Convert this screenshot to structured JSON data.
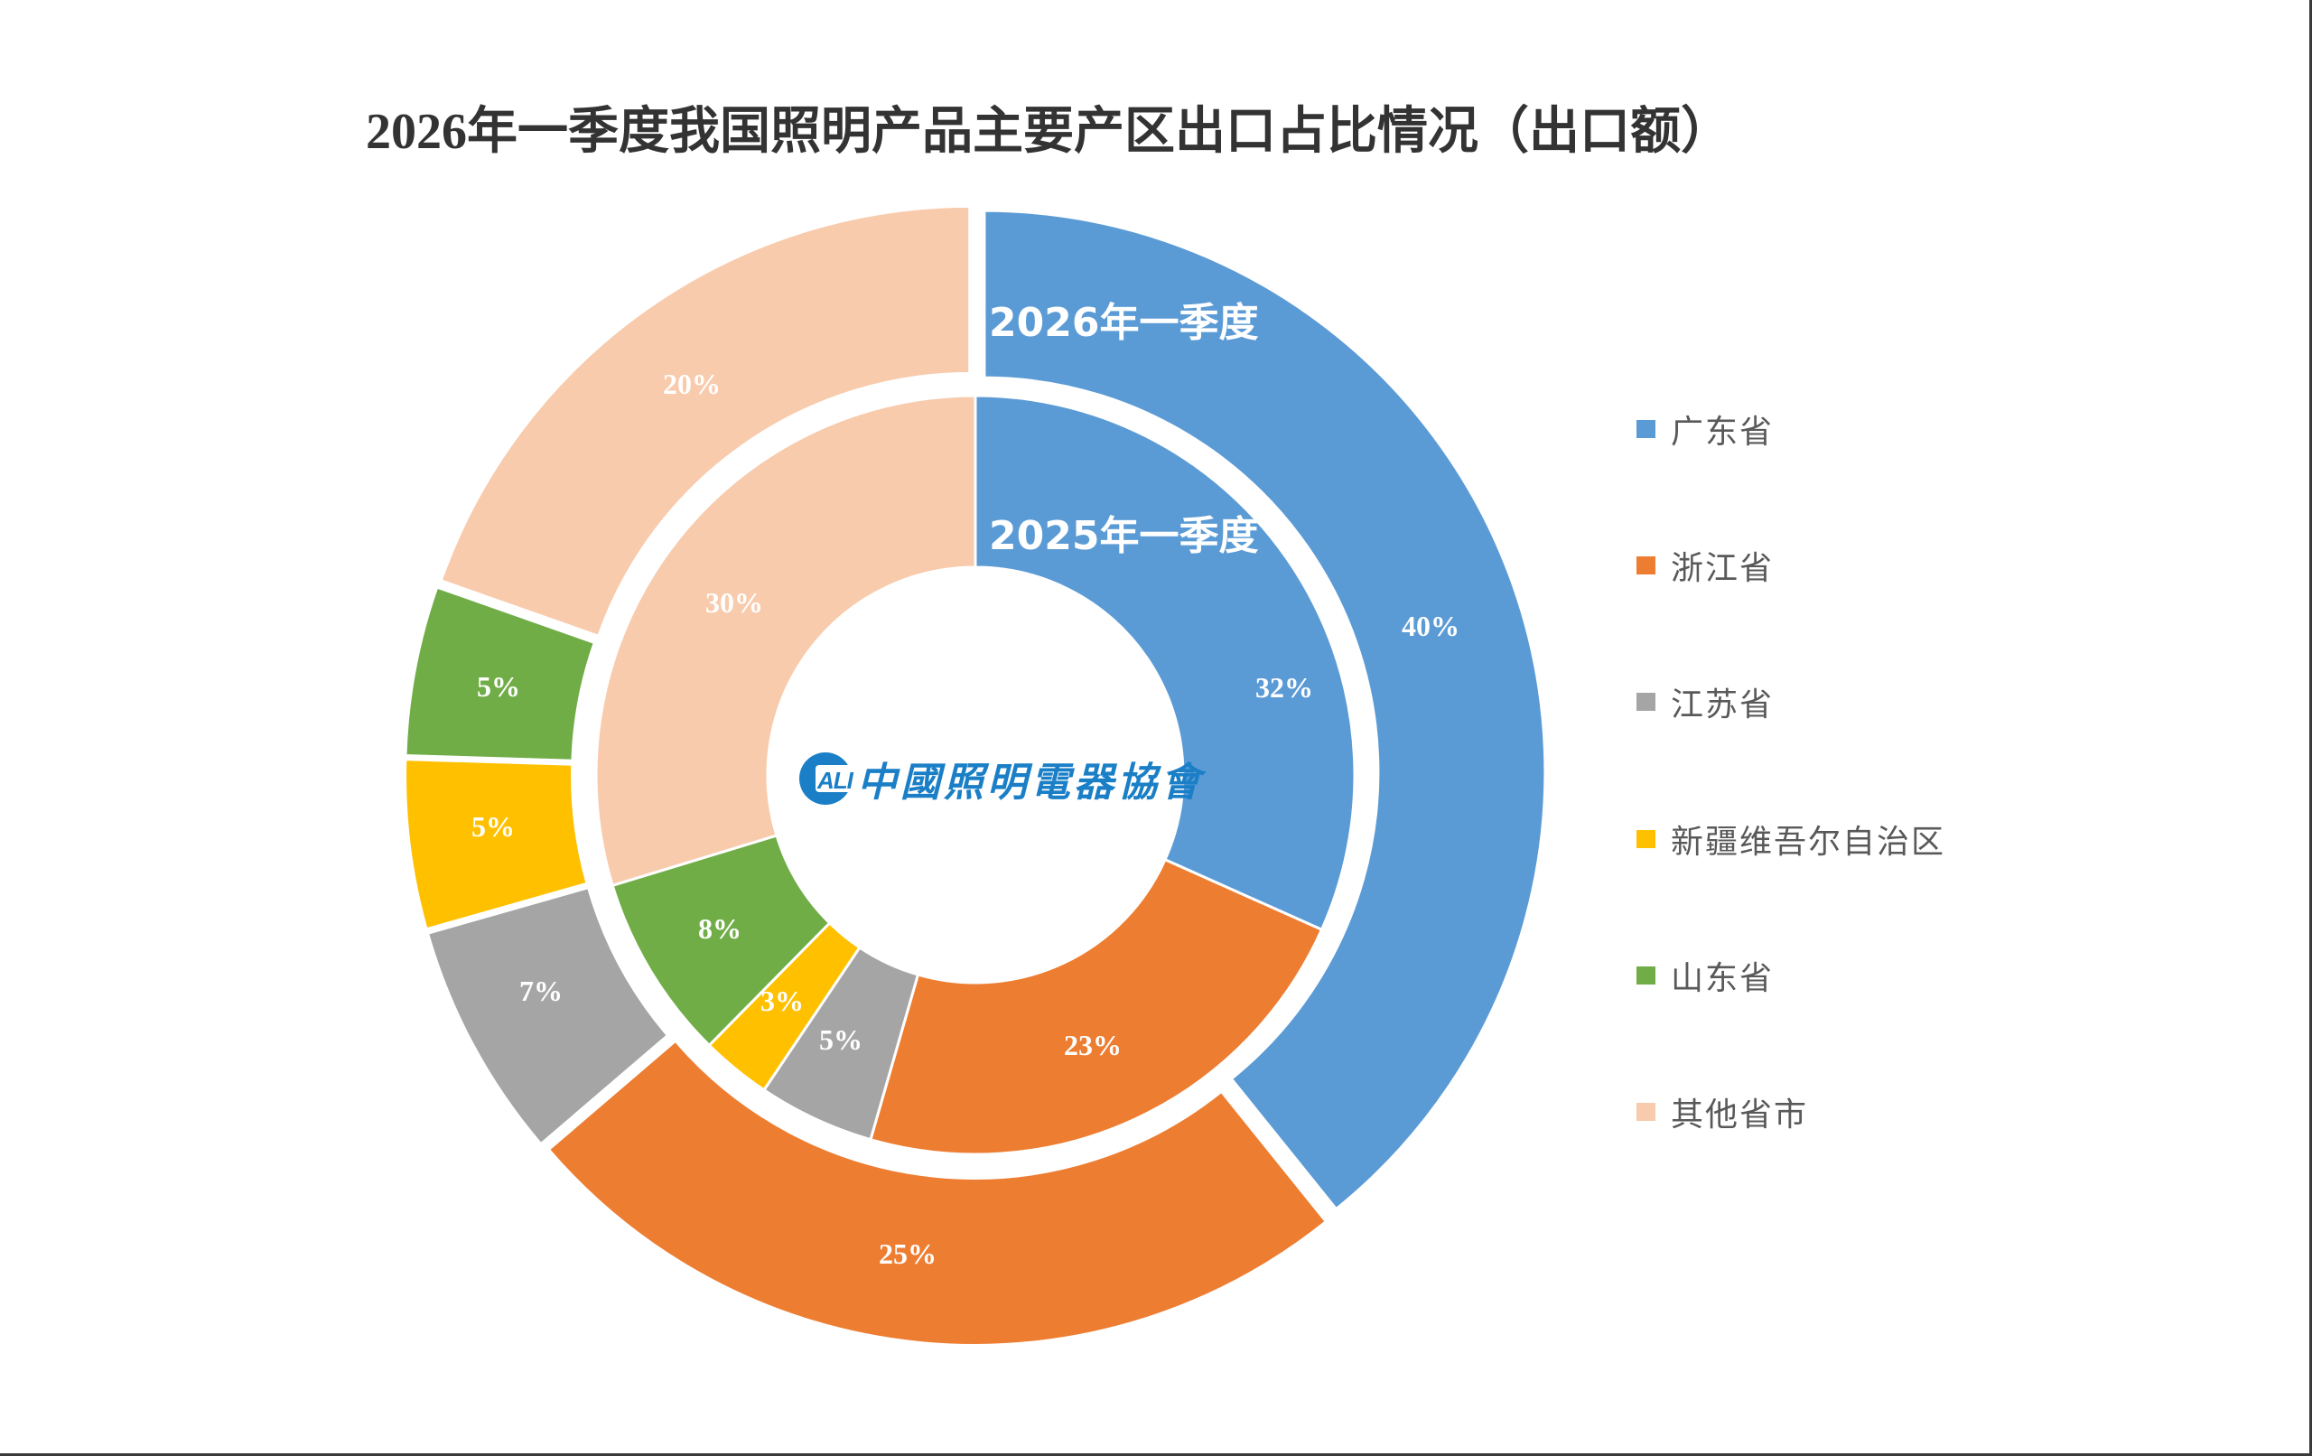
{
  "title": "2026年一季度我国照明产品主要产区出口占比情况（出口额）",
  "colors": {
    "guangdong": "#5B9BD5",
    "zhejiang": "#ED7D31",
    "jiangsu": "#A5A5A5",
    "xinjiang": "#FFC000",
    "shandong": "#70AD47",
    "others": "#F8CBAD",
    "title_text": "#333333",
    "legend_text": "#595959",
    "logo": "#1a7fc6"
  },
  "ring_titles": {
    "outer": "2026年一季度",
    "inner": "2025年一季度"
  },
  "legend": [
    {
      "label": "广东省",
      "color": "#5B9BD5"
    },
    {
      "label": "浙江省",
      "color": "#ED7D31"
    },
    {
      "label": "江苏省",
      "color": "#A5A5A5"
    },
    {
      "label": "新疆维吾尔自治区",
      "color": "#FFC000"
    },
    {
      "label": "山东省",
      "color": "#70AD47"
    },
    {
      "label": "其他省市",
      "color": "#F8CBAD"
    }
  ],
  "logo": {
    "abbr": "ALI",
    "text": "中國照明電器協會"
  },
  "chart_data": {
    "type": "pie",
    "subtype": "doughnut-nested",
    "title": "2026年一季度我国照明产品主要产区出口占比情况（出口额）",
    "categories": [
      "广东省",
      "浙江省",
      "江苏省",
      "新疆维吾尔自治区",
      "山东省",
      "其他省市"
    ],
    "series": [
      {
        "name": "2026年一季度",
        "ring": "outer",
        "values": [
          40,
          25,
          7,
          5,
          5,
          20
        ],
        "labels": [
          "40%",
          "25%",
          "7%",
          "5%",
          "5%",
          "20%"
        ]
      },
      {
        "name": "2025年一季度",
        "ring": "inner",
        "values": [
          32,
          23,
          5,
          3,
          8,
          30
        ],
        "labels": [
          "32%",
          "23%",
          "5%",
          "3%",
          "8%",
          "30%"
        ]
      }
    ],
    "unit": "%",
    "legend_position": "right",
    "start_angle": 0,
    "direction": "clockwise"
  }
}
